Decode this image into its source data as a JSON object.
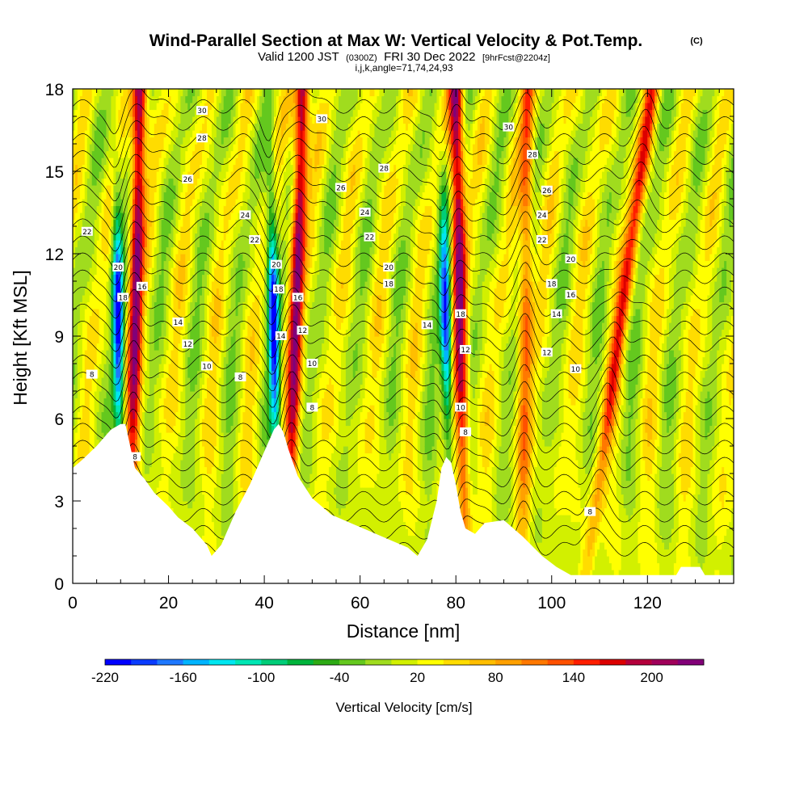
{
  "title": {
    "main": "Wind-Parallel Section at Max W: Vertical Velocity & Pot.Temp.",
    "copyright": "(C)",
    "valid_prefix": "Valid 1200 JST",
    "valid_utc": "(0300Z)",
    "valid_date": "FRI 30 Dec 2022",
    "forecast_info": "[9hrFcst@2204z]",
    "section_params": "i,j,k,angle=71,74,24,93"
  },
  "chart_data": {
    "type": "heatmap",
    "xlabel": "Distance [nm]",
    "ylabel": "Height [Kft MSL]",
    "xlim": [
      0,
      138
    ],
    "ylim": [
      0,
      18
    ],
    "x_ticks": [
      0,
      20,
      40,
      60,
      80,
      100,
      120
    ],
    "y_ticks": [
      0,
      3,
      6,
      9,
      12,
      15,
      18
    ],
    "x_tick_labels": [
      "0",
      "20",
      "40",
      "60",
      "80",
      "100",
      "120"
    ],
    "y_tick_labels": [
      "0",
      "3",
      "6",
      "9",
      "12",
      "15",
      "18"
    ],
    "colorbar": {
      "title": "Vertical Velocity [cm/s]",
      "range": [
        -220,
        240
      ],
      "tick_labels": [
        "-220",
        "-160",
        "-100",
        "-40",
        "20",
        "80",
        "140",
        "200"
      ],
      "tick_values": [
        -220,
        -160,
        -100,
        -40,
        20,
        80,
        140,
        200
      ],
      "colors": [
        "#0000ff",
        "#0a3cff",
        "#1e78ff",
        "#00b4ff",
        "#00e6f0",
        "#00e6b4",
        "#00cd78",
        "#00b43c",
        "#2daa14",
        "#64c81e",
        "#a0dc1e",
        "#d2f000",
        "#ffff00",
        "#ffdc00",
        "#ffbe00",
        "#ffa000",
        "#ff7800",
        "#ff5000",
        "#ff1e00",
        "#dc0000",
        "#b4003c",
        "#a0005a",
        "#820078"
      ]
    },
    "terrain_kft": [
      [
        0,
        4.2
      ],
      [
        2,
        4.5
      ],
      [
        5,
        5.0
      ],
      [
        8,
        5.6
      ],
      [
        10,
        5.8
      ],
      [
        11,
        5.8
      ],
      [
        12,
        5.0
      ],
      [
        13,
        4.2
      ],
      [
        15,
        3.8
      ],
      [
        17,
        3.3
      ],
      [
        20,
        2.8
      ],
      [
        22,
        2.4
      ],
      [
        25,
        2.0
      ],
      [
        28,
        1.4
      ],
      [
        29,
        1.0
      ],
      [
        31,
        1.4
      ],
      [
        34,
        2.6
      ],
      [
        37,
        3.6
      ],
      [
        40,
        4.8
      ],
      [
        42,
        5.6
      ],
      [
        43,
        5.8
      ],
      [
        44,
        5.5
      ],
      [
        45,
        4.9
      ],
      [
        47,
        3.9
      ],
      [
        50,
        3.1
      ],
      [
        54,
        2.5
      ],
      [
        58,
        2.2
      ],
      [
        62,
        1.9
      ],
      [
        66,
        1.6
      ],
      [
        70,
        1.3
      ],
      [
        72,
        1.0
      ],
      [
        74,
        1.6
      ],
      [
        76,
        3.0
      ],
      [
        77,
        4.2
      ],
      [
        78,
        4.6
      ],
      [
        79,
        4.4
      ],
      [
        80,
        3.6
      ],
      [
        81,
        2.6
      ],
      [
        82,
        2.0
      ],
      [
        84,
        1.8
      ],
      [
        86,
        2.2
      ],
      [
        90,
        2.3
      ],
      [
        94,
        1.7
      ],
      [
        98,
        1.0
      ],
      [
        101,
        0.6
      ],
      [
        104,
        0.3
      ],
      [
        110,
        0.3
      ],
      [
        118,
        0.3
      ],
      [
        126,
        0.3
      ],
      [
        127,
        0.6
      ],
      [
        131,
        0.6
      ],
      [
        132,
        0.3
      ],
      [
        138,
        0.3
      ]
    ],
    "updraft_bands": [
      {
        "x_base": 12,
        "x_top": 14,
        "w_max": 200
      },
      {
        "x_base": 45,
        "x_top": 48,
        "w_max": 200
      },
      {
        "x_base": 82,
        "x_top": 80,
        "w_max": 200
      },
      {
        "x_base": 94,
        "x_top": 95,
        "w_max": 110
      },
      {
        "x_base": 107,
        "x_top": 121,
        "w_max": 120
      }
    ],
    "downdraft_bands": [
      {
        "x_base": 10,
        "x_top": 9,
        "w_min": -220
      },
      {
        "x_base": 43,
        "x_top": 41,
        "w_min": -220
      },
      {
        "x_base": 79,
        "x_top": 77,
        "w_min": -220
      }
    ],
    "isentrope_labels": [
      {
        "x": 27,
        "y": 17.2,
        "text": "30"
      },
      {
        "x": 27,
        "y": 16.2,
        "text": "28"
      },
      {
        "x": 24,
        "y": 14.7,
        "text": "26"
      },
      {
        "x": 36,
        "y": 13.4,
        "text": "24"
      },
      {
        "x": 38,
        "y": 12.5,
        "text": "22"
      },
      {
        "x": 3,
        "y": 12.8,
        "text": "22"
      },
      {
        "x": 9.5,
        "y": 11.5,
        "text": "20"
      },
      {
        "x": 10.5,
        "y": 10.4,
        "text": "18"
      },
      {
        "x": 14.5,
        "y": 10.8,
        "text": "16"
      },
      {
        "x": 22,
        "y": 9.5,
        "text": "14"
      },
      {
        "x": 24,
        "y": 8.7,
        "text": "12"
      },
      {
        "x": 28,
        "y": 7.9,
        "text": "10"
      },
      {
        "x": 4,
        "y": 7.6,
        "text": "8"
      },
      {
        "x": 35,
        "y": 7.5,
        "text": "8"
      },
      {
        "x": 13,
        "y": 4.6,
        "text": "8"
      },
      {
        "x": 52,
        "y": 16.9,
        "text": "30"
      },
      {
        "x": 65,
        "y": 15.1,
        "text": "28"
      },
      {
        "x": 56,
        "y": 14.4,
        "text": "26"
      },
      {
        "x": 61,
        "y": 13.5,
        "text": "24"
      },
      {
        "x": 62,
        "y": 12.6,
        "text": "22"
      },
      {
        "x": 42.5,
        "y": 11.6,
        "text": "20"
      },
      {
        "x": 43,
        "y": 10.7,
        "text": "18"
      },
      {
        "x": 47,
        "y": 10.4,
        "text": "16"
      },
      {
        "x": 66,
        "y": 11.5,
        "text": "20"
      },
      {
        "x": 66,
        "y": 10.9,
        "text": "18"
      },
      {
        "x": 43.5,
        "y": 9.0,
        "text": "14"
      },
      {
        "x": 48,
        "y": 9.2,
        "text": "12"
      },
      {
        "x": 50,
        "y": 8.0,
        "text": "10"
      },
      {
        "x": 50,
        "y": 6.4,
        "text": "8"
      },
      {
        "x": 74,
        "y": 9.4,
        "text": "14"
      },
      {
        "x": 91,
        "y": 16.6,
        "text": "30"
      },
      {
        "x": 96,
        "y": 15.6,
        "text": "28"
      },
      {
        "x": 99,
        "y": 14.3,
        "text": "26"
      },
      {
        "x": 98,
        "y": 13.4,
        "text": "24"
      },
      {
        "x": 98,
        "y": 12.5,
        "text": "22"
      },
      {
        "x": 104,
        "y": 11.8,
        "text": "20"
      },
      {
        "x": 100,
        "y": 10.9,
        "text": "18"
      },
      {
        "x": 104,
        "y": 10.5,
        "text": "16"
      },
      {
        "x": 101,
        "y": 9.8,
        "text": "14"
      },
      {
        "x": 99,
        "y": 8.4,
        "text": "12"
      },
      {
        "x": 105,
        "y": 7.8,
        "text": "10"
      },
      {
        "x": 81,
        "y": 9.8,
        "text": "18"
      },
      {
        "x": 82,
        "y": 8.5,
        "text": "12"
      },
      {
        "x": 81,
        "y": 6.4,
        "text": "10"
      },
      {
        "x": 82,
        "y": 5.5,
        "text": "8"
      },
      {
        "x": 108,
        "y": 2.6,
        "text": "8"
      }
    ]
  }
}
